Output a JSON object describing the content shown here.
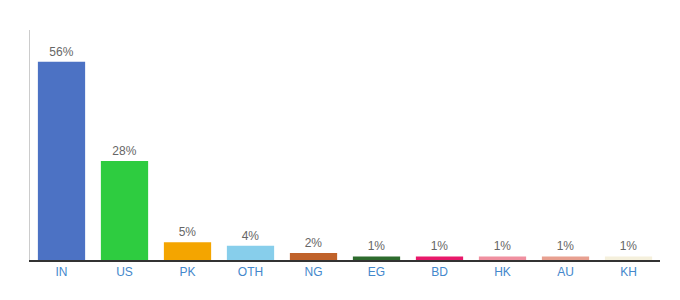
{
  "chart_data": {
    "type": "bar",
    "categories": [
      "IN",
      "US",
      "PK",
      "OTH",
      "NG",
      "EG",
      "BD",
      "HK",
      "AU",
      "KH"
    ],
    "values": [
      56,
      28,
      5,
      4,
      2,
      1,
      1,
      1,
      1,
      1
    ],
    "value_labels": [
      "56%",
      "28%",
      "5%",
      "4%",
      "2%",
      "1%",
      "1%",
      "1%",
      "1%",
      "1%"
    ],
    "colors": [
      "#4C72C4",
      "#2ECC40",
      "#F4A500",
      "#87CEEB",
      "#C0622A",
      "#2D6B2D",
      "#E8186A",
      "#F090A0",
      "#E8A090",
      "#F5F0DC"
    ],
    "ylim": [
      0,
      65
    ],
    "grid": false,
    "data_labels": true,
    "tick_labels": "x"
  }
}
